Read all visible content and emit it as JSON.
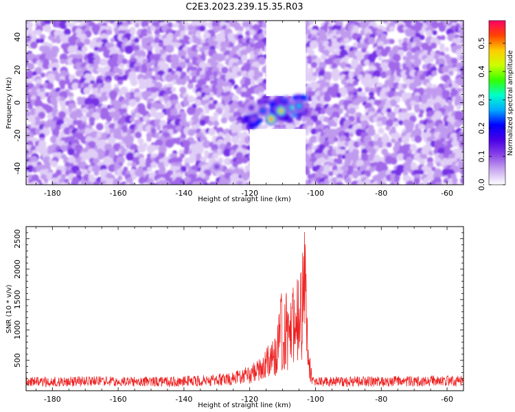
{
  "figure": {
    "title": "C2E3.2023.239.15.35.R03"
  },
  "chart_data": [
    {
      "type": "heatmap",
      "xlabel": "Height of straight line (km)",
      "ylabel": "Frequency (Hz)",
      "xlim": [
        -188,
        -55
      ],
      "ylim": [
        -50,
        50
      ],
      "xticks": [
        -180,
        -160,
        -140,
        -120,
        -100,
        -80,
        -60
      ],
      "yticks": [
        -40,
        -20,
        0,
        20,
        40
      ],
      "colorbar": {
        "label": "Normalized spectral amplitude",
        "range": [
          0.0,
          0.58
        ],
        "ticks": [
          0.0,
          0.1,
          0.2,
          0.3,
          0.4,
          0.5
        ],
        "colormap": [
          "#ffffff",
          "#c9a8f0",
          "#8a44e6",
          "#4a00e6",
          "#0000ff",
          "#00aaff",
          "#00ffcc",
          "#33ff00",
          "#ccff00",
          "#ffcc00",
          "#ff4400",
          "#ff0066"
        ]
      },
      "background_amplitude": [
        0.0,
        0.12
      ],
      "empty_regions": [
        {
          "x": [
            -120,
            -103
          ],
          "y": [
            -50,
            -16
          ]
        },
        {
          "x": [
            -115,
            -103
          ],
          "y": [
            4,
            50
          ]
        }
      ],
      "hotspots": [
        {
          "x": -113.5,
          "y": -10,
          "amplitude": 0.55
        },
        {
          "x": -110.5,
          "y": -5,
          "amplitude": 0.5
        },
        {
          "x": -107,
          "y": -3,
          "amplitude": 0.33
        },
        {
          "x": -105,
          "y": -2,
          "amplitude": 0.3
        },
        {
          "x": -116,
          "y": -5,
          "amplitude": 0.25
        },
        {
          "x": -119.5,
          "y": -3,
          "amplitude": 0.15
        },
        {
          "x": -130,
          "y": -39,
          "amplitude": 0.13
        }
      ]
    },
    {
      "type": "line",
      "xlabel": "Height of straight line (km)",
      "ylabel": "SNR (10 * v/v)",
      "xlim": [
        -188,
        -55
      ],
      "ylim": [
        0,
        2700
      ],
      "xticks": [
        -180,
        -160,
        -140,
        -120,
        -100,
        -80,
        -60
      ],
      "yticks": [
        500,
        1000,
        1500,
        2000,
        2500
      ],
      "color": "#ee2222",
      "series": [
        {
          "x": [
            -188,
            -170,
            -150,
            -135,
            -125,
            -120,
            -117,
            -114,
            -112,
            -111,
            -110.5,
            -110,
            -109,
            -108,
            -107,
            -106,
            -105,
            -104.3,
            -103.5,
            -103,
            -102.5,
            -102,
            -101,
            -100,
            -90,
            -80,
            -70,
            -55
          ],
          "values": [
            180,
            190,
            190,
            200,
            250,
            330,
            420,
            640,
            880,
            1350,
            1800,
            1000,
            1600,
            1100,
            1650,
            1400,
            2150,
            1800,
            2680,
            2100,
            1300,
            600,
            200,
            180,
            190,
            190,
            200,
            200
          ]
        }
      ]
    }
  ]
}
